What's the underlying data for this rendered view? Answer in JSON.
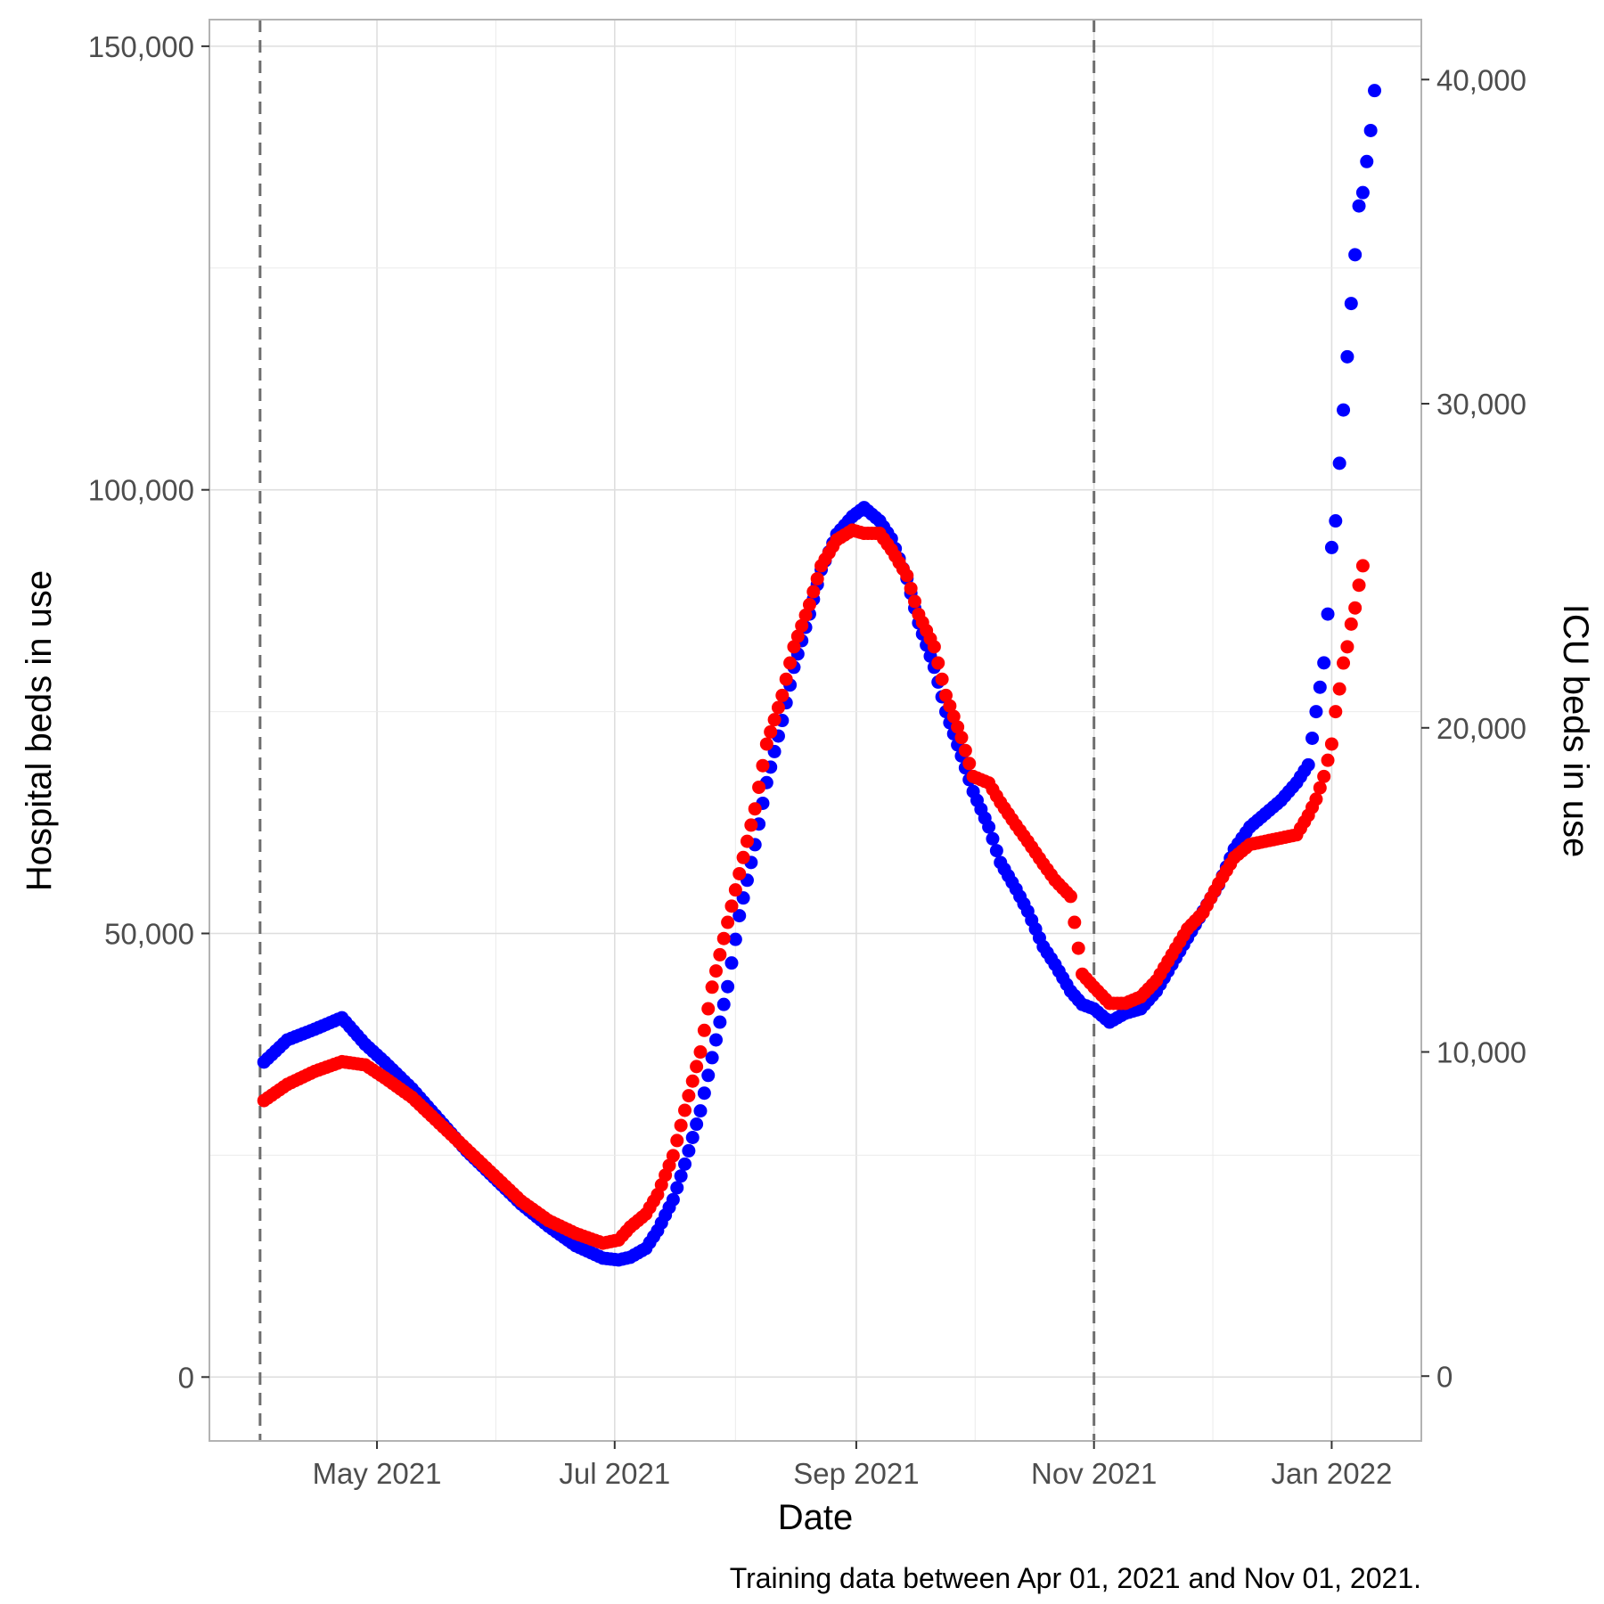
{
  "chart_data": {
    "type": "scatter",
    "xlabel": "Date",
    "ylabel": "Hospital beds in use",
    "y2label": "ICU beds in use",
    "caption": "Training data between Apr 01, 2021 and Nov 01, 2021.",
    "x_ticks": [
      {
        "label": "May 2021",
        "date": "2021-05-01"
      },
      {
        "label": "Jul 2021",
        "date": "2021-07-01"
      },
      {
        "label": "Sep 2021",
        "date": "2021-09-01"
      },
      {
        "label": "Nov 2021",
        "date": "2021-11-01"
      },
      {
        "label": "Jan 2022",
        "date": "2022-01-01"
      }
    ],
    "xlim": [
      "2021-03-19",
      "2022-01-24"
    ],
    "y_ticks": [
      {
        "label": "0",
        "value": 0
      },
      {
        "label": "50,000",
        "value": 50000
      },
      {
        "label": "100,000",
        "value": 100000
      },
      {
        "label": "150,000",
        "value": 150000
      }
    ],
    "ylim": [
      -7200,
      153000
    ],
    "y2_ticks": [
      {
        "label": "0",
        "value": 0
      },
      {
        "label": "10,000",
        "value": 10000
      },
      {
        "label": "20,000",
        "value": 20000
      },
      {
        "label": "30,000",
        "value": 30000
      },
      {
        "label": "40,000",
        "value": 40000
      }
    ],
    "y2lim": [
      -2000,
      41850
    ],
    "vlines": [
      "2021-04-01",
      "2021-11-01"
    ],
    "grid": true,
    "colors": {
      "hospital": "#0000FF",
      "icu": "#FF0000"
    },
    "series": [
      {
        "axis": "left",
        "color": "#0000FF",
        "points": [
          [
            "2021-04-02",
            35500
          ],
          [
            "2021-04-08",
            38000
          ],
          [
            "2021-04-15",
            39200
          ],
          [
            "2021-04-22",
            40500
          ],
          [
            "2021-04-28",
            37500
          ],
          [
            "2021-05-03",
            35500
          ],
          [
            "2021-05-10",
            32500
          ],
          [
            "2021-05-17",
            29000
          ],
          [
            "2021-05-24",
            25500
          ],
          [
            "2021-05-31",
            22500
          ],
          [
            "2021-06-07",
            19500
          ],
          [
            "2021-06-14",
            17000
          ],
          [
            "2021-06-21",
            14800
          ],
          [
            "2021-06-28",
            13400
          ],
          [
            "2021-07-02",
            13200
          ],
          [
            "2021-07-05",
            13500
          ],
          [
            "2021-07-09",
            14500
          ],
          [
            "2021-07-12",
            16500
          ],
          [
            "2021-07-16",
            20000
          ],
          [
            "2021-07-19",
            24000
          ],
          [
            "2021-07-23",
            30000
          ],
          [
            "2021-07-26",
            36000
          ],
          [
            "2021-07-30",
            44000
          ],
          [
            "2021-08-02",
            52000
          ],
          [
            "2021-08-06",
            60000
          ],
          [
            "2021-08-09",
            67000
          ],
          [
            "2021-08-13",
            74000
          ],
          [
            "2021-08-16",
            80000
          ],
          [
            "2021-08-20",
            86000
          ],
          [
            "2021-08-23",
            91000
          ],
          [
            "2021-08-27",
            95000
          ],
          [
            "2021-08-31",
            97000
          ],
          [
            "2021-09-03",
            98000
          ],
          [
            "2021-09-07",
            96500
          ],
          [
            "2021-09-10",
            94500
          ],
          [
            "2021-09-14",
            90000
          ],
          [
            "2021-09-17",
            85000
          ],
          [
            "2021-09-21",
            80000
          ],
          [
            "2021-09-24",
            75000
          ],
          [
            "2021-09-28",
            70000
          ],
          [
            "2021-10-01",
            66000
          ],
          [
            "2021-10-05",
            62000
          ],
          [
            "2021-10-08",
            58000
          ],
          [
            "2021-10-12",
            55000
          ],
          [
            "2021-10-15",
            52500
          ],
          [
            "2021-10-19",
            48500
          ],
          [
            "2021-10-22",
            46500
          ],
          [
            "2021-10-26",
            43500
          ],
          [
            "2021-10-29",
            42000
          ],
          [
            "2021-11-01",
            41500
          ],
          [
            "2021-11-05",
            40000
          ],
          [
            "2021-11-09",
            41000
          ],
          [
            "2021-11-13",
            41500
          ],
          [
            "2021-11-17",
            43500
          ],
          [
            "2021-11-21",
            46500
          ],
          [
            "2021-11-25",
            49500
          ],
          [
            "2021-11-29",
            52500
          ],
          [
            "2021-12-03",
            55500
          ],
          [
            "2021-12-07",
            59500
          ],
          [
            "2021-12-11",
            62000
          ],
          [
            "2021-12-15",
            63500
          ],
          [
            "2021-12-19",
            65000
          ],
          [
            "2021-12-23",
            67000
          ],
          [
            "2021-12-26",
            69000
          ],
          [
            "2021-12-28",
            75000
          ],
          [
            "2021-12-30",
            80500
          ],
          [
            "2021-12-31",
            86000
          ],
          [
            "2022-01-01",
            93500
          ],
          [
            "2022-01-02",
            96500
          ],
          [
            "2022-01-03",
            103000
          ],
          [
            "2022-01-04",
            109000
          ],
          [
            "2022-01-05",
            115000
          ],
          [
            "2022-01-06",
            121000
          ],
          [
            "2022-01-07",
            126500
          ],
          [
            "2022-01-08",
            132000
          ],
          [
            "2022-01-09",
            133500
          ],
          [
            "2022-01-10",
            137000
          ],
          [
            "2022-01-11",
            140500
          ],
          [
            "2022-01-12",
            145000
          ]
        ]
      },
      {
        "axis": "right",
        "color": "#FF0000",
        "points": [
          [
            "2021-04-02",
            8500
          ],
          [
            "2021-04-08",
            9000
          ],
          [
            "2021-04-15",
            9400
          ],
          [
            "2021-04-22",
            9700
          ],
          [
            "2021-04-28",
            9600
          ],
          [
            "2021-05-03",
            9200
          ],
          [
            "2021-05-10",
            8600
          ],
          [
            "2021-05-17",
            7800
          ],
          [
            "2021-05-24",
            7000
          ],
          [
            "2021-05-31",
            6200
          ],
          [
            "2021-06-07",
            5400
          ],
          [
            "2021-06-14",
            4800
          ],
          [
            "2021-06-21",
            4400
          ],
          [
            "2021-06-28",
            4100
          ],
          [
            "2021-07-02",
            4200
          ],
          [
            "2021-07-05",
            4600
          ],
          [
            "2021-07-09",
            5000
          ],
          [
            "2021-07-12",
            5600
          ],
          [
            "2021-07-16",
            6800
          ],
          [
            "2021-07-19",
            8200
          ],
          [
            "2021-07-23",
            10000
          ],
          [
            "2021-07-26",
            12000
          ],
          [
            "2021-07-30",
            14000
          ],
          [
            "2021-08-02",
            15500
          ],
          [
            "2021-08-06",
            17500
          ],
          [
            "2021-08-09",
            19500
          ],
          [
            "2021-08-13",
            21000
          ],
          [
            "2021-08-16",
            22500
          ],
          [
            "2021-08-20",
            23800
          ],
          [
            "2021-08-23",
            25000
          ],
          [
            "2021-08-27",
            25800
          ],
          [
            "2021-08-31",
            26100
          ],
          [
            "2021-09-03",
            26000
          ],
          [
            "2021-09-07",
            26000
          ],
          [
            "2021-09-10",
            25500
          ],
          [
            "2021-09-14",
            24700
          ],
          [
            "2021-09-17",
            23500
          ],
          [
            "2021-09-21",
            22500
          ],
          [
            "2021-09-24",
            21000
          ],
          [
            "2021-09-28",
            19700
          ],
          [
            "2021-10-01",
            18500
          ],
          [
            "2021-10-05",
            18300
          ],
          [
            "2021-10-08",
            17700
          ],
          [
            "2021-10-12",
            17000
          ],
          [
            "2021-10-15",
            16500
          ],
          [
            "2021-10-19",
            15800
          ],
          [
            "2021-10-22",
            15300
          ],
          [
            "2021-10-26",
            14800
          ],
          [
            "2021-10-29",
            12400
          ],
          [
            "2021-11-01",
            12000
          ],
          [
            "2021-11-05",
            11500
          ],
          [
            "2021-11-09",
            11500
          ],
          [
            "2021-11-13",
            11700
          ],
          [
            "2021-11-17",
            12200
          ],
          [
            "2021-11-21",
            13000
          ],
          [
            "2021-11-25",
            13800
          ],
          [
            "2021-11-29",
            14300
          ],
          [
            "2021-12-03",
            15200
          ],
          [
            "2021-12-07",
            16000
          ],
          [
            "2021-12-11",
            16400
          ],
          [
            "2021-12-15",
            16500
          ],
          [
            "2021-12-19",
            16600
          ],
          [
            "2021-12-23",
            16700
          ],
          [
            "2021-12-26",
            17300
          ],
          [
            "2021-12-28",
            17800
          ],
          [
            "2021-12-30",
            18500
          ],
          [
            "2021-12-31",
            19000
          ],
          [
            "2022-01-01",
            19500
          ],
          [
            "2022-01-02",
            20500
          ],
          [
            "2022-01-03",
            21200
          ],
          [
            "2022-01-04",
            22000
          ],
          [
            "2022-01-05",
            22500
          ],
          [
            "2022-01-06",
            23200
          ],
          [
            "2022-01-07",
            23700
          ],
          [
            "2022-01-08",
            24400
          ],
          [
            "2022-01-09",
            25000
          ]
        ]
      }
    ]
  }
}
